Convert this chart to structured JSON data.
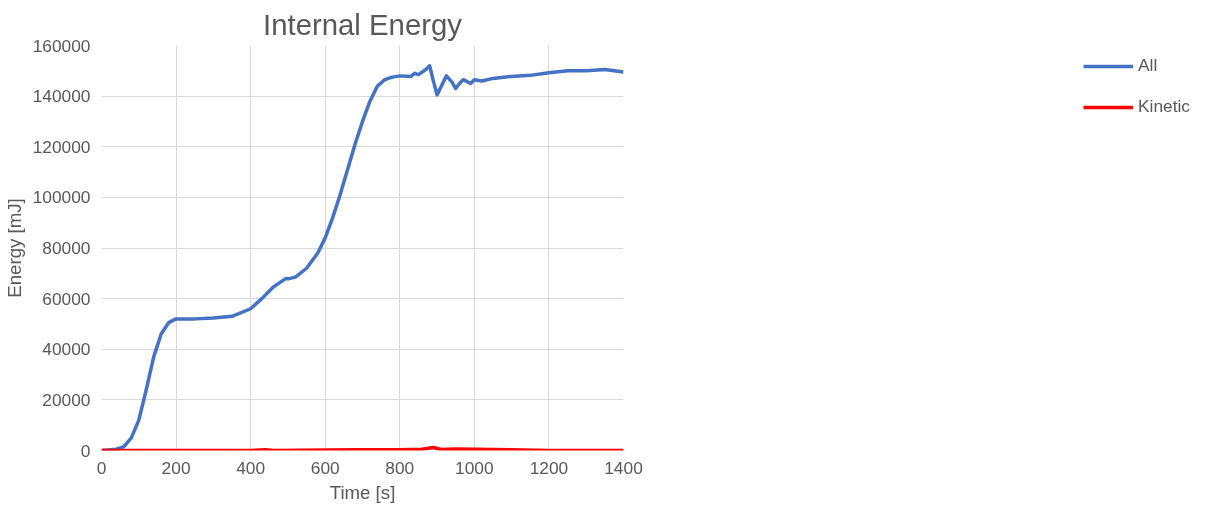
{
  "chart_data": {
    "type": "line",
    "title": "Internal Energy",
    "xlabel": "Time [s]",
    "ylabel": "Energy [mJ]",
    "xlim": [
      0,
      1400
    ],
    "xticks": [
      0,
      200,
      400,
      600,
      800,
      1000,
      1200,
      1400
    ],
    "ylim": [
      0,
      160000
    ],
    "yticks": [
      0,
      20000,
      40000,
      60000,
      80000,
      100000,
      120000,
      140000,
      160000
    ],
    "grid": true,
    "legend": "right",
    "line_style": "solid",
    "series": [
      {
        "name": "All",
        "color": "#4472c4",
        "x": [
          0,
          40,
          60,
          80,
          100,
          120,
          140,
          160,
          180,
          200,
          250,
          300,
          350,
          400,
          430,
          460,
          480,
          495,
          500,
          520,
          550,
          580,
          600,
          620,
          640,
          660,
          680,
          700,
          720,
          740,
          760,
          780,
          800,
          830,
          840,
          850,
          870,
          880,
          890,
          900,
          910,
          925,
          940,
          950,
          960,
          970,
          990,
          1000,
          1020,
          1050,
          1100,
          1150,
          1200,
          1250,
          1300,
          1350,
          1400
        ],
        "values": [
          0,
          500,
          1500,
          5000,
          12000,
          24000,
          37000,
          46000,
          50500,
          52000,
          52000,
          52300,
          53000,
          56000,
          60000,
          64500,
          66500,
          68000,
          67800,
          68500,
          72000,
          78000,
          84000,
          92000,
          101000,
          111000,
          121000,
          130000,
          138000,
          144000,
          146500,
          147500,
          148000,
          147800,
          149000,
          148500,
          150500,
          152000,
          146000,
          140500,
          143500,
          148000,
          145500,
          143000,
          145000,
          146500,
          145000,
          146500,
          146000,
          147000,
          147800,
          148200,
          149200,
          150000,
          150000,
          150500,
          149500
        ]
      },
      {
        "name": "Kinetic",
        "color": "#ff0000",
        "x": [
          0,
          400,
          440,
          460,
          680,
          800,
          860,
          890,
          910,
          950,
          1000,
          1100,
          1200,
          1400
        ],
        "values": [
          0,
          0,
          300,
          0,
          300,
          300,
          500,
          1200,
          400,
          600,
          500,
          300,
          0,
          0
        ]
      }
    ]
  }
}
